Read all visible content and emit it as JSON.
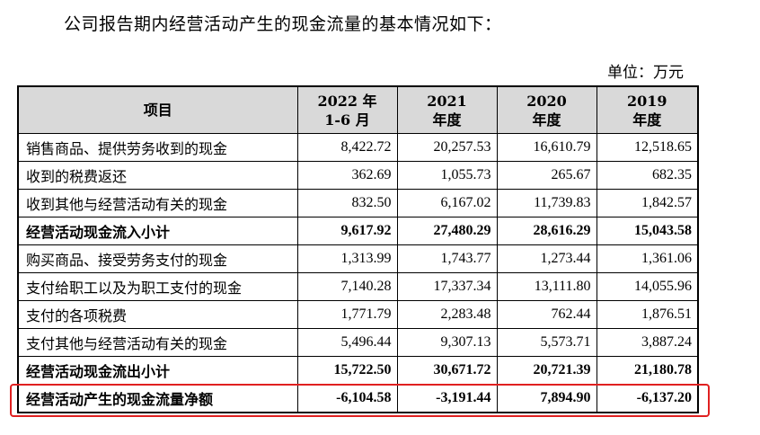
{
  "intro": "公司报告期内经营活动产生的现金流量的基本情况如下：",
  "unit": "单位：万元",
  "table": {
    "headers": [
      {
        "line1": "项目",
        "line2": ""
      },
      {
        "line1": "2022 年",
        "line2": "1-6 月"
      },
      {
        "line1": "2021",
        "line2": "年度"
      },
      {
        "line1": "2020",
        "line2": "年度"
      },
      {
        "line1": "2019",
        "line2": "年度"
      }
    ],
    "rows": [
      {
        "label": "销售商品、提供劳务收到的现金",
        "values": [
          "8,422.72",
          "20,257.53",
          "16,610.79",
          "12,518.65"
        ],
        "bold": false
      },
      {
        "label": "收到的税费返还",
        "values": [
          "362.69",
          "1,055.73",
          "265.67",
          "682.35"
        ],
        "bold": false
      },
      {
        "label": "收到其他与经营活动有关的现金",
        "values": [
          "832.50",
          "6,167.02",
          "11,739.83",
          "1,842.57"
        ],
        "bold": false
      },
      {
        "label": "经营活动现金流入小计",
        "values": [
          "9,617.92",
          "27,480.29",
          "28,616.29",
          "15,043.58"
        ],
        "bold": true
      },
      {
        "label": "购买商品、接受劳务支付的现金",
        "values": [
          "1,313.99",
          "1,743.77",
          "1,273.44",
          "1,361.06"
        ],
        "bold": false
      },
      {
        "label": "支付给职工以及为职工支付的现金",
        "values": [
          "7,140.28",
          "17,337.34",
          "13,111.80",
          "14,055.96"
        ],
        "bold": false
      },
      {
        "label": "支付的各项税费",
        "values": [
          "1,771.79",
          "2,283.48",
          "762.44",
          "1,876.51"
        ],
        "bold": false
      },
      {
        "label": "支付其他与经营活动有关的现金",
        "values": [
          "5,496.44",
          "9,307.13",
          "5,573.71",
          "3,887.24"
        ],
        "bold": false
      },
      {
        "label": "经营活动现金流出小计",
        "values": [
          "15,722.50",
          "30,671.72",
          "20,721.39",
          "21,180.78"
        ],
        "bold": true
      },
      {
        "label": "经营活动产生的现金流量净额",
        "values": [
          "-6,104.58",
          "-3,191.44",
          "7,894.90",
          "-6,137.20"
        ],
        "bold": true
      }
    ]
  },
  "colors": {
    "header_bg": "#d9d9d9",
    "highlight_border": "#e02020"
  }
}
